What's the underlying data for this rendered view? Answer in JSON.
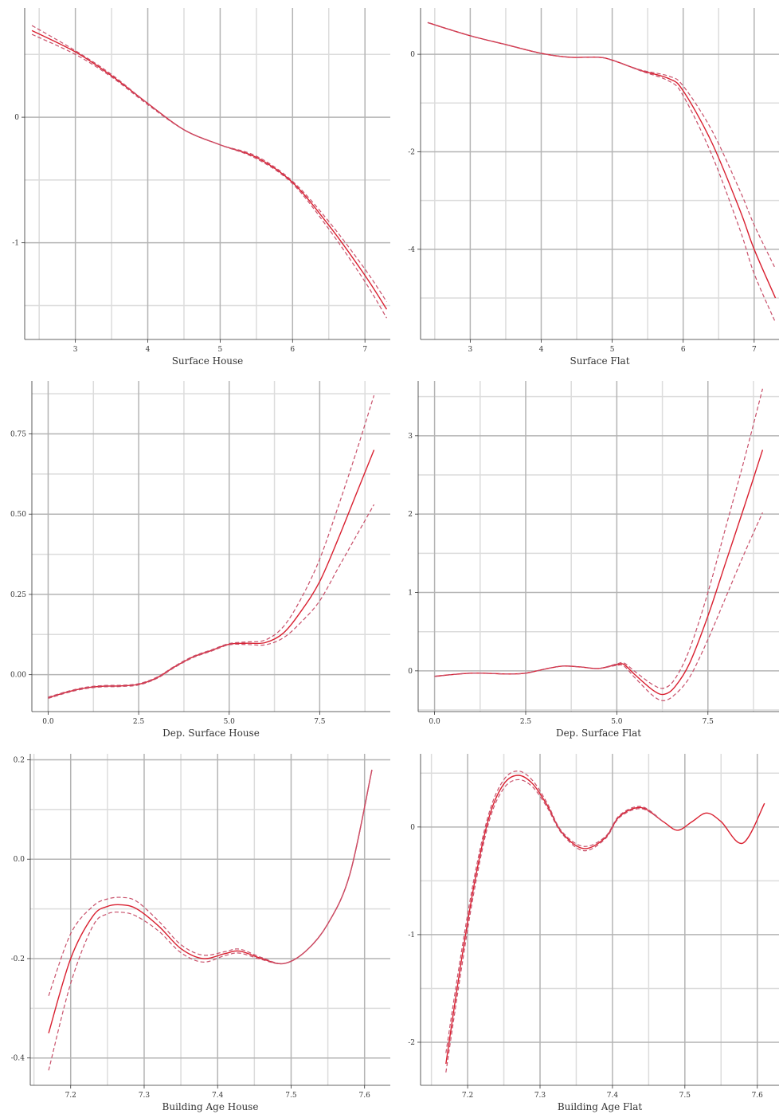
{
  "colors": {
    "fit": "#d92030",
    "band": "#c8506a"
  },
  "chart_data": [
    {
      "type": "line",
      "xlabel": "Surface House",
      "xlim": [
        2.3,
        7.35
      ],
      "ylim": [
        -1.77,
        0.87
      ],
      "xticks": [
        3,
        4,
        5,
        6,
        7
      ],
      "xtick_labels": [
        "3",
        "4",
        "5",
        "6",
        "7"
      ],
      "yticks": [
        -1,
        0
      ],
      "ytick_labels": [
        "-1",
        "0"
      ],
      "grid": true,
      "series": [
        {
          "role": "fit",
          "style": "solid",
          "x": [
            2.4,
            3.0,
            3.5,
            4.0,
            4.5,
            5.0,
            5.5,
            6.0,
            6.5,
            7.0,
            7.3
          ],
          "y": [
            0.69,
            0.52,
            0.33,
            0.11,
            -0.1,
            -0.22,
            -0.32,
            -0.52,
            -0.86,
            -1.26,
            -1.53
          ]
        },
        {
          "role": "upper",
          "style": "dashed",
          "x": [
            2.4,
            3.0,
            3.5,
            4.0,
            4.5,
            5.0,
            5.5,
            6.0,
            6.5,
            7.0,
            7.3
          ],
          "y": [
            0.73,
            0.53,
            0.34,
            0.11,
            -0.1,
            -0.22,
            -0.31,
            -0.51,
            -0.83,
            -1.21,
            -1.47
          ]
        },
        {
          "role": "lower",
          "style": "dashed",
          "x": [
            2.4,
            3.0,
            3.5,
            4.0,
            4.5,
            5.0,
            5.5,
            6.0,
            6.5,
            7.0,
            7.3
          ],
          "y": [
            0.66,
            0.5,
            0.32,
            0.1,
            -0.1,
            -0.22,
            -0.33,
            -0.53,
            -0.89,
            -1.31,
            -1.6
          ]
        }
      ]
    },
    {
      "type": "line",
      "xlabel": "Surface Flat",
      "xlim": [
        2.3,
        7.35
      ],
      "ylim": [
        -5.85,
        0.95
      ],
      "xticks": [
        3,
        4,
        5,
        6,
        7
      ],
      "xtick_labels": [
        "3",
        "4",
        "5",
        "6",
        "7"
      ],
      "yticks": [
        -4,
        -2,
        0
      ],
      "ytick_labels": [
        "-4",
        "-2",
        "0"
      ],
      "grid": true,
      "series": [
        {
          "role": "fit",
          "style": "solid",
          "x": [
            2.4,
            3.0,
            3.5,
            4.0,
            4.4,
            4.8,
            5.0,
            5.4,
            5.8,
            6.0,
            6.4,
            6.8,
            7.0,
            7.3
          ],
          "y": [
            0.65,
            0.38,
            0.2,
            0.02,
            -0.06,
            -0.06,
            -0.12,
            -0.33,
            -0.5,
            -0.75,
            -1.8,
            -3.2,
            -4.0,
            -5.0
          ]
        },
        {
          "role": "upper",
          "style": "dashed",
          "x": [
            2.4,
            3.0,
            3.5,
            4.0,
            4.4,
            4.8,
            5.0,
            5.4,
            5.8,
            6.0,
            6.4,
            6.8,
            7.0,
            7.3
          ],
          "y": [
            0.65,
            0.38,
            0.2,
            0.02,
            -0.06,
            -0.06,
            -0.12,
            -0.32,
            -0.45,
            -0.65,
            -1.55,
            -2.8,
            -3.5,
            -4.4
          ]
        },
        {
          "role": "lower",
          "style": "dashed",
          "x": [
            2.4,
            3.0,
            3.5,
            4.0,
            4.4,
            4.8,
            5.0,
            5.4,
            5.8,
            6.0,
            6.4,
            6.8,
            7.0,
            7.3
          ],
          "y": [
            0.65,
            0.38,
            0.2,
            0.02,
            -0.06,
            -0.06,
            -0.12,
            -0.34,
            -0.55,
            -0.85,
            -2.05,
            -3.6,
            -4.5,
            -5.5
          ]
        }
      ]
    },
    {
      "type": "line",
      "xlabel": "Dep. Surface House",
      "xlim": [
        -0.45,
        9.45
      ],
      "ylim": [
        -0.115,
        0.915
      ],
      "xticks": [
        0,
        2.5,
        5,
        7.5
      ],
      "xtick_labels": [
        "0.0",
        "2.5",
        "5.0",
        "7.5"
      ],
      "yticks": [
        0,
        0.25,
        0.5,
        0.75
      ],
      "ytick_labels": [
        "0.00",
        "0.25",
        "0.50",
        "0.75"
      ],
      "grid": true,
      "series": [
        {
          "role": "fit",
          "style": "solid",
          "x": [
            0,
            0.5,
            1,
            1.5,
            2,
            2.5,
            3,
            3.5,
            4,
            4.5,
            5,
            5.5,
            6,
            6.5,
            7,
            7.5,
            8,
            8.5,
            9
          ],
          "y": [
            -0.072,
            -0.055,
            -0.042,
            -0.036,
            -0.035,
            -0.03,
            -0.01,
            0.025,
            0.055,
            0.075,
            0.095,
            0.098,
            0.1,
            0.13,
            0.2,
            0.29,
            0.42,
            0.56,
            0.7
          ]
        },
        {
          "role": "upper",
          "style": "dashed",
          "x": [
            0,
            0.5,
            1,
            1.5,
            2,
            2.5,
            3,
            3.5,
            4,
            4.5,
            5,
            5.5,
            6,
            6.5,
            7,
            7.5,
            8,
            8.5,
            9
          ],
          "y": [
            -0.07,
            -0.053,
            -0.04,
            -0.034,
            -0.033,
            -0.028,
            -0.008,
            0.027,
            0.057,
            0.077,
            0.097,
            0.102,
            0.108,
            0.15,
            0.24,
            0.36,
            0.52,
            0.69,
            0.87
          ]
        },
        {
          "role": "lower",
          "style": "dashed",
          "x": [
            0,
            0.5,
            1,
            1.5,
            2,
            2.5,
            3,
            3.5,
            4,
            4.5,
            5,
            5.5,
            6,
            6.5,
            7,
            7.5,
            8,
            8.5,
            9
          ],
          "y": [
            -0.074,
            -0.057,
            -0.044,
            -0.038,
            -0.037,
            -0.032,
            -0.012,
            0.023,
            0.053,
            0.073,
            0.093,
            0.094,
            0.093,
            0.115,
            0.165,
            0.23,
            0.33,
            0.43,
            0.53
          ]
        }
      ]
    },
    {
      "type": "line",
      "xlabel": "Dep. Surface Flat",
      "xlim": [
        -0.45,
        9.45
      ],
      "ylim": [
        -0.52,
        3.7
      ],
      "xticks": [
        0,
        2.5,
        5,
        7.5
      ],
      "xtick_labels": [
        "0.0",
        "2.5",
        "5.0",
        "7.5"
      ],
      "yticks": [
        0,
        1,
        2,
        3
      ],
      "ytick_labels": [
        "0",
        "1",
        "2",
        "3"
      ],
      "grid": true,
      "series": [
        {
          "role": "fit",
          "style": "solid",
          "x": [
            0,
            1,
            2,
            2.5,
            3,
            3.5,
            4,
            4.5,
            5,
            5.2,
            5.5,
            6,
            6.3,
            6.6,
            7,
            7.5,
            8,
            8.5,
            9
          ],
          "y": [
            -0.07,
            -0.03,
            -0.04,
            -0.03,
            0.02,
            0.06,
            0.05,
            0.03,
            0.08,
            0.08,
            -0.05,
            -0.25,
            -0.3,
            -0.2,
            0.1,
            0.7,
            1.4,
            2.1,
            2.82
          ]
        },
        {
          "role": "upper",
          "style": "dashed",
          "x": [
            0,
            1,
            2,
            2.5,
            3,
            3.5,
            4,
            4.5,
            5,
            5.2,
            5.5,
            6,
            6.3,
            6.6,
            7,
            7.5,
            8,
            8.5,
            9
          ],
          "y": [
            -0.07,
            -0.03,
            -0.04,
            -0.03,
            0.02,
            0.06,
            0.05,
            0.03,
            0.09,
            0.1,
            -0.01,
            -0.18,
            -0.22,
            -0.1,
            0.28,
            1.0,
            1.85,
            2.7,
            3.6
          ]
        },
        {
          "role": "lower",
          "style": "dashed",
          "x": [
            0,
            1,
            2,
            2.5,
            3,
            3.5,
            4,
            4.5,
            5,
            5.2,
            5.5,
            6,
            6.3,
            6.6,
            7,
            7.5,
            8,
            8.5,
            9
          ],
          "y": [
            -0.07,
            -0.03,
            -0.04,
            -0.03,
            0.02,
            0.06,
            0.05,
            0.03,
            0.07,
            0.06,
            -0.09,
            -0.32,
            -0.38,
            -0.3,
            -0.08,
            0.4,
            0.95,
            1.5,
            2.02
          ]
        }
      ]
    },
    {
      "type": "line",
      "xlabel": "Building Age House",
      "xlim": [
        7.145,
        7.635
      ],
      "ylim": [
        -0.455,
        0.212
      ],
      "xticks": [
        7.2,
        7.3,
        7.4,
        7.5,
        7.6
      ],
      "xtick_labels": [
        "7.2",
        "7.3",
        "7.4",
        "7.5",
        "7.6"
      ],
      "yticks": [
        -0.4,
        -0.2,
        0,
        0.2
      ],
      "ytick_labels": [
        "-0.4",
        "-0.2",
        "0.0",
        "0.2"
      ],
      "grid": true,
      "series": [
        {
          "role": "fit",
          "style": "solid",
          "x": [
            7.17,
            7.2,
            7.23,
            7.25,
            7.27,
            7.29,
            7.32,
            7.35,
            7.38,
            7.41,
            7.43,
            7.46,
            7.49,
            7.52,
            7.55,
            7.58,
            7.61
          ],
          "y": [
            -0.35,
            -0.2,
            -0.115,
            -0.095,
            -0.092,
            -0.1,
            -0.135,
            -0.18,
            -0.2,
            -0.19,
            -0.185,
            -0.2,
            -0.21,
            -0.185,
            -0.13,
            -0.03,
            0.18
          ]
        },
        {
          "role": "upper",
          "style": "dashed",
          "x": [
            7.17,
            7.2,
            7.23,
            7.25,
            7.27,
            7.29,
            7.32,
            7.35,
            7.38,
            7.41,
            7.43,
            7.46,
            7.49,
            7.52,
            7.55,
            7.58,
            7.61
          ],
          "y": [
            -0.275,
            -0.15,
            -0.095,
            -0.08,
            -0.077,
            -0.085,
            -0.125,
            -0.172,
            -0.193,
            -0.186,
            -0.181,
            -0.198,
            -0.21,
            -0.185,
            -0.13,
            -0.03,
            0.18
          ]
        },
        {
          "role": "lower",
          "style": "dashed",
          "x": [
            7.17,
            7.2,
            7.23,
            7.25,
            7.27,
            7.29,
            7.32,
            7.35,
            7.38,
            7.41,
            7.43,
            7.46,
            7.49,
            7.52,
            7.55,
            7.58,
            7.61
          ],
          "y": [
            -0.425,
            -0.25,
            -0.135,
            -0.11,
            -0.107,
            -0.115,
            -0.145,
            -0.188,
            -0.207,
            -0.194,
            -0.189,
            -0.202,
            -0.21,
            -0.185,
            -0.13,
            -0.03,
            0.18
          ]
        }
      ]
    },
    {
      "type": "line",
      "xlabel": "Building Age Flat",
      "xlim": [
        7.135,
        7.63
      ],
      "ylim": [
        -2.4,
        0.68
      ],
      "xticks": [
        7.2,
        7.3,
        7.4,
        7.5,
        7.6
      ],
      "xtick_labels": [
        "7.2",
        "7.3",
        "7.4",
        "7.5",
        "7.6"
      ],
      "yticks": [
        -2,
        -1,
        0
      ],
      "ytick_labels": [
        "-2",
        "-1",
        "0"
      ],
      "grid": true,
      "series": [
        {
          "role": "fit",
          "style": "solid",
          "x": [
            7.17,
            7.19,
            7.21,
            7.23,
            7.25,
            7.27,
            7.29,
            7.31,
            7.33,
            7.36,
            7.39,
            7.41,
            7.44,
            7.47,
            7.49,
            7.51,
            7.53,
            7.55,
            7.58,
            7.61
          ],
          "y": [
            -2.2,
            -1.3,
            -0.5,
            0.1,
            0.4,
            0.48,
            0.4,
            0.2,
            -0.05,
            -0.2,
            -0.1,
            0.1,
            0.18,
            0.05,
            -0.03,
            0.05,
            0.13,
            0.05,
            -0.15,
            0.22
          ]
        },
        {
          "role": "upper",
          "style": "dashed",
          "x": [
            7.17,
            7.19,
            7.21,
            7.23,
            7.25,
            7.27,
            7.29,
            7.31,
            7.33,
            7.36,
            7.39,
            7.41,
            7.44,
            7.47
          ],
          "y": [
            -2.1,
            -1.22,
            -0.44,
            0.14,
            0.44,
            0.52,
            0.43,
            0.22,
            -0.04,
            -0.18,
            -0.09,
            0.11,
            0.19,
            0.05
          ]
        },
        {
          "role": "lower",
          "style": "dashed",
          "x": [
            7.17,
            7.19,
            7.21,
            7.23,
            7.25,
            7.27,
            7.29,
            7.31,
            7.33,
            7.36,
            7.39,
            7.41,
            7.44,
            7.47
          ],
          "y": [
            -2.28,
            -1.38,
            -0.56,
            0.06,
            0.36,
            0.44,
            0.37,
            0.18,
            -0.06,
            -0.22,
            -0.11,
            0.09,
            0.17,
            0.05
          ]
        }
      ]
    }
  ]
}
